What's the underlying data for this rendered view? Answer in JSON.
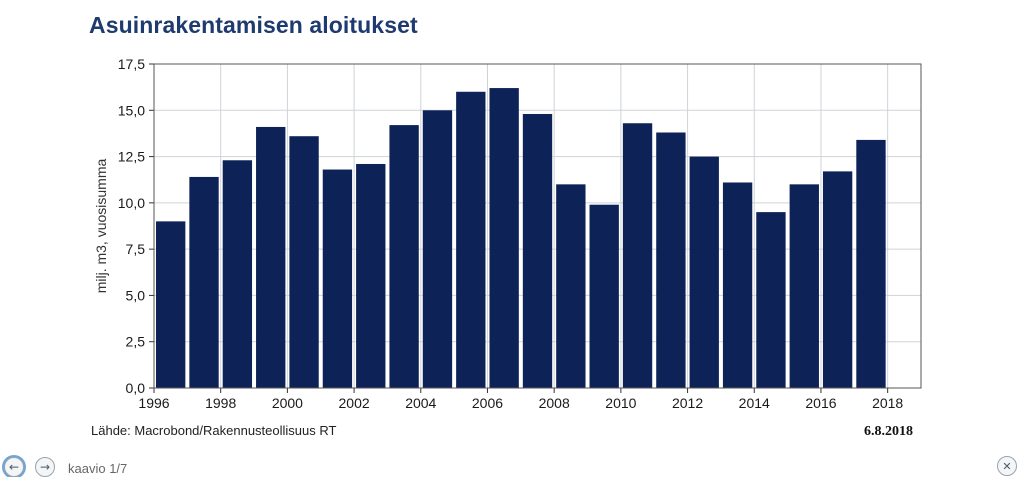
{
  "chart_data": {
    "type": "bar",
    "title": "Asuinrakentamisen aloitukset",
    "ylabel": "milj. m3, vuosisumma",
    "xlabel": "",
    "ylim": [
      0,
      17.5
    ],
    "yticks": [
      "0,0",
      "2,5",
      "5,0",
      "7,5",
      "10,0",
      "12,5",
      "15,0",
      "17,5"
    ],
    "xticks": [
      "1996",
      "1998",
      "2000",
      "2002",
      "2004",
      "2006",
      "2008",
      "2010",
      "2012",
      "2014",
      "2016",
      "2018"
    ],
    "categories": [
      "1996",
      "1997",
      "1998",
      "1999",
      "2000",
      "2001",
      "2002",
      "2003",
      "2004",
      "2005",
      "2006",
      "2007",
      "2008",
      "2009",
      "2010",
      "2011",
      "2012",
      "2013",
      "2014",
      "2015",
      "2016",
      "2017"
    ],
    "values": [
      9.0,
      11.4,
      12.3,
      14.1,
      13.6,
      11.8,
      12.1,
      14.2,
      15.0,
      16.0,
      16.2,
      14.8,
      11.0,
      9.9,
      14.3,
      13.8,
      12.5,
      11.1,
      9.5,
      11.0,
      11.7,
      13.4
    ],
    "bar_color": "#0d2257",
    "grid": true
  },
  "footer": {
    "source": "Lähde: Macrobond/Rakennusteollisuus RT",
    "date": "6.8.2018"
  },
  "nav": {
    "pager": "kaavio 1/7",
    "prev_icon": "arrow-left-icon",
    "next_icon": "arrow-right-icon",
    "close_icon": "close-icon"
  }
}
